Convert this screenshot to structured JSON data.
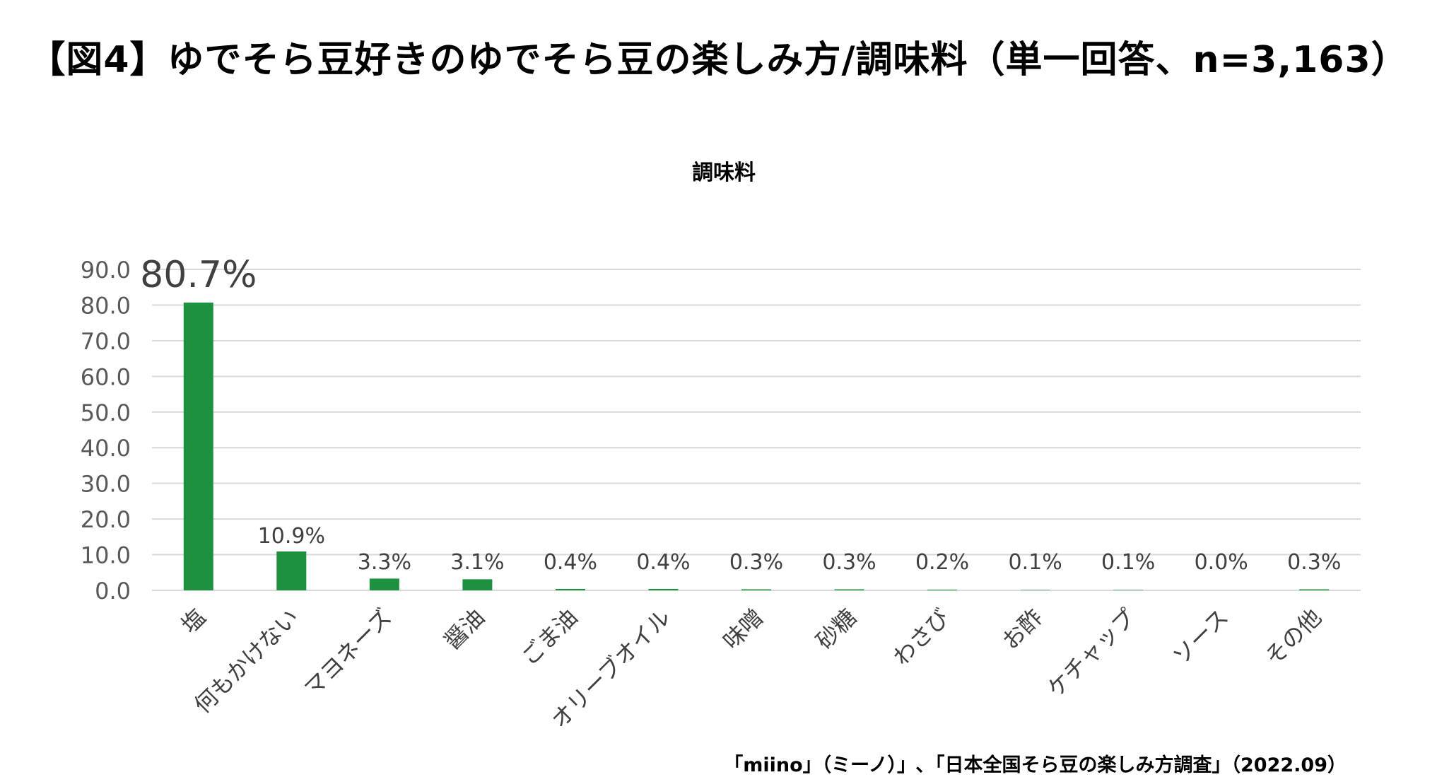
{
  "title": "【図4】ゆでそら豆好きのゆでそら豆の楽しみ方/調味料（単一回答、n=3,163）",
  "source": "「miino」（ミーノ）」､「日本全国そら豆の楽しみ方調査」（2022.09）",
  "colors": {
    "bar": "#1e9140",
    "grid": "#d9d9d9",
    "tick_text": "#595959",
    "label_text": "#404040"
  },
  "chart_data": {
    "type": "bar",
    "title": "調味料",
    "categories": [
      "塩",
      "何もかけない",
      "マヨネーズ",
      "醤油",
      "ごま油",
      "オリーブオイル",
      "味噌",
      "砂糖",
      "わさび",
      "お酢",
      "ケチャップ",
      "ソース",
      "その他"
    ],
    "values": [
      80.7,
      10.9,
      3.3,
      3.1,
      0.4,
      0.4,
      0.3,
      0.3,
      0.2,
      0.1,
      0.1,
      0.0,
      0.3
    ],
    "data_labels": [
      "80.7%",
      "10.9%",
      "3.3%",
      "3.1%",
      "0.4%",
      "0.4%",
      "0.3%",
      "0.3%",
      "0.2%",
      "0.1%",
      "0.1%",
      "0.0%",
      "0.3%"
    ],
    "y_ticks": [
      "0.0",
      "10.0",
      "20.0",
      "30.0",
      "40.0",
      "50.0",
      "60.0",
      "70.0",
      "80.0",
      "90.0"
    ],
    "ylim": [
      0,
      90
    ],
    "grid": true,
    "legend": "none"
  }
}
